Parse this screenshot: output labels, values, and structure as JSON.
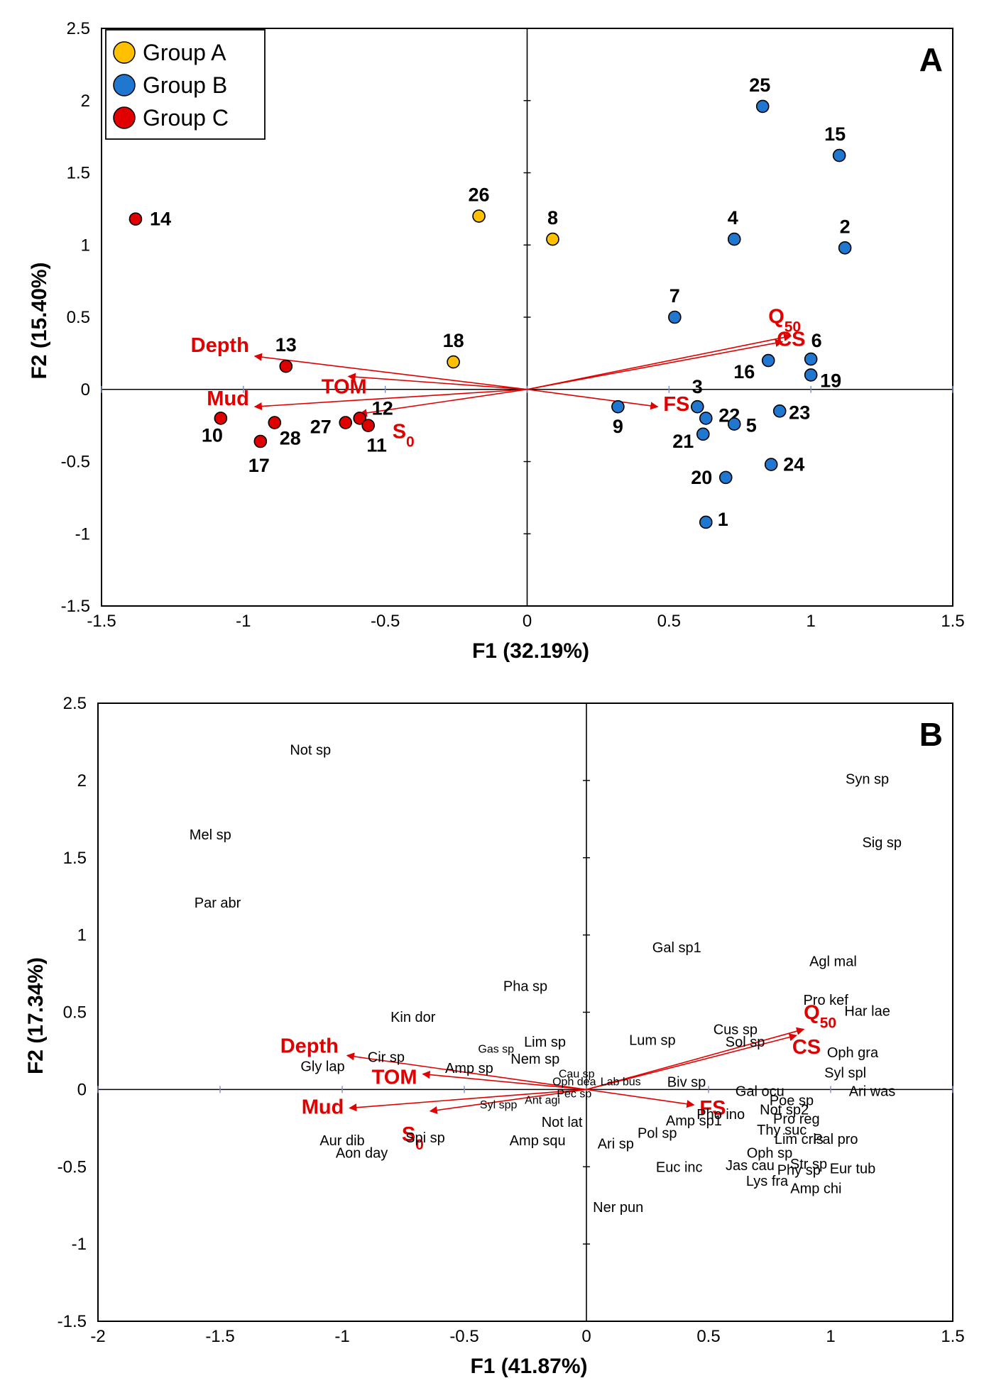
{
  "chart_data": [
    {
      "type": "scatter",
      "panel_label": "A",
      "title": "",
      "xlabel": "F1 (32.19%)",
      "ylabel": "F2 (15.40%)",
      "xlim": [
        -1.5,
        1.5
      ],
      "ylim": [
        -1.5,
        2.5
      ],
      "xticks": [
        "-1.5",
        "-1",
        "-0.5",
        "0",
        "0.5",
        "1",
        "1.5"
      ],
      "yticks": [
        "-1.5",
        "-1",
        "-0.5",
        "0",
        "0.5",
        "1",
        "1.5",
        "2",
        "2.5"
      ],
      "legend": {
        "position": "top-left",
        "entries": [
          {
            "name": "Group A",
            "color": "#FFC000"
          },
          {
            "name": "Group B",
            "color": "#1F77D0"
          },
          {
            "name": "Group C",
            "color": "#E00000"
          }
        ]
      },
      "points": [
        {
          "label": "14",
          "x": -1.38,
          "y": 1.18,
          "group": "Group C"
        },
        {
          "label": "26",
          "x": -0.17,
          "y": 1.2,
          "group": "Group A"
        },
        {
          "label": "8",
          "x": 0.09,
          "y": 1.04,
          "group": "Group A"
        },
        {
          "label": "18",
          "x": -0.26,
          "y": 0.19,
          "group": "Group A"
        },
        {
          "label": "13",
          "x": -0.85,
          "y": 0.16,
          "group": "Group C"
        },
        {
          "label": "10",
          "x": -1.08,
          "y": -0.2,
          "group": "Group C"
        },
        {
          "label": "28",
          "x": -0.89,
          "y": -0.23,
          "group": "Group C"
        },
        {
          "label": "17",
          "x": -0.94,
          "y": -0.36,
          "group": "Group C"
        },
        {
          "label": "27",
          "x": -0.64,
          "y": -0.23,
          "group": "Group C"
        },
        {
          "label": "12",
          "x": -0.59,
          "y": -0.2,
          "group": "Group C"
        },
        {
          "label": "11",
          "x": -0.56,
          "y": -0.25,
          "group": "Group C"
        },
        {
          "label": "25",
          "x": 0.83,
          "y": 1.96,
          "group": "Group B"
        },
        {
          "label": "15",
          "x": 1.1,
          "y": 1.62,
          "group": "Group B"
        },
        {
          "label": "4",
          "x": 0.73,
          "y": 1.04,
          "group": "Group B"
        },
        {
          "label": "2",
          "x": 1.12,
          "y": 0.98,
          "group": "Group B"
        },
        {
          "label": "7",
          "x": 0.52,
          "y": 0.5,
          "group": "Group B"
        },
        {
          "label": "6",
          "x": 1.0,
          "y": 0.21,
          "group": "Group B"
        },
        {
          "label": "16",
          "x": 0.85,
          "y": 0.2,
          "group": "Group B"
        },
        {
          "label": "19",
          "x": 1.0,
          "y": 0.1,
          "group": "Group B"
        },
        {
          "label": "9",
          "x": 0.32,
          "y": -0.12,
          "group": "Group B"
        },
        {
          "label": "3",
          "x": 0.6,
          "y": -0.12,
          "group": "Group B"
        },
        {
          "label": "22",
          "x": 0.63,
          "y": -0.2,
          "group": "Group B"
        },
        {
          "label": "21",
          "x": 0.62,
          "y": -0.31,
          "group": "Group B"
        },
        {
          "label": "5",
          "x": 0.73,
          "y": -0.24,
          "group": "Group B"
        },
        {
          "label": "23",
          "x": 0.89,
          "y": -0.15,
          "group": "Group B"
        },
        {
          "label": "24",
          "x": 0.86,
          "y": -0.52,
          "group": "Group B"
        },
        {
          "label": "20",
          "x": 0.7,
          "y": -0.61,
          "group": "Group B"
        },
        {
          "label": "1",
          "x": 0.63,
          "y": -0.92,
          "group": "Group B"
        }
      ],
      "vectors": [
        {
          "label": "Depth",
          "x": -0.96,
          "y": 0.23
        },
        {
          "label": "TOM",
          "x": -0.63,
          "y": 0.09
        },
        {
          "label": "Mud",
          "x": -0.96,
          "y": -0.12
        },
        {
          "label": "S",
          "subscript": "0",
          "x": -0.59,
          "y": -0.17
        },
        {
          "label": "FS",
          "x": 0.46,
          "y": -0.12
        },
        {
          "label": "Q",
          "subscript": "50",
          "x": 0.93,
          "y": 0.37
        },
        {
          "label": "CS",
          "x": 0.9,
          "y": 0.33
        }
      ]
    },
    {
      "type": "scatter",
      "panel_label": "B",
      "title": "",
      "xlabel": "F1 (41.87%)",
      "ylabel": "F2 (17.34%)",
      "xlim": [
        -2,
        1.5
      ],
      "ylim": [
        -1.5,
        2.5
      ],
      "xticks": [
        "-2",
        "-1.5",
        "-1",
        "-0.5",
        "0",
        "0.5",
        "1",
        "1.5"
      ],
      "yticks": [
        "-1.5",
        "-1",
        "-0.5",
        "0",
        "0.5",
        "1",
        "1.5",
        "2",
        "2.5"
      ],
      "species": [
        {
          "label": "Not sp",
          "x": -1.13,
          "y": 2.2
        },
        {
          "label": "Mel sp",
          "x": -1.54,
          "y": 1.65
        },
        {
          "label": "Par abr",
          "x": -1.51,
          "y": 1.21
        },
        {
          "label": "Syn sp",
          "x": 1.15,
          "y": 2.01
        },
        {
          "label": "Sig sp",
          "x": 1.21,
          "y": 1.6
        },
        {
          "label": "Gal sp1",
          "x": 0.37,
          "y": 0.92
        },
        {
          "label": "Agl mal",
          "x": 1.01,
          "y": 0.83
        },
        {
          "label": "Pha sp",
          "x": -0.25,
          "y": 0.67
        },
        {
          "label": "Pro kef",
          "x": 0.98,
          "y": 0.58
        },
        {
          "label": "Har lae",
          "x": 1.15,
          "y": 0.51
        },
        {
          "label": "Kin dor",
          "x": -0.71,
          "y": 0.47
        },
        {
          "label": "Cus sp",
          "x": 0.61,
          "y": 0.39
        },
        {
          "label": "Lum sp",
          "x": 0.27,
          "y": 0.32
        },
        {
          "label": "Sol sp",
          "x": 0.65,
          "y": 0.31
        },
        {
          "label": "Lim sp",
          "x": -0.17,
          "y": 0.31
        },
        {
          "label": "Gas sp",
          "x": -0.37,
          "y": 0.27
        },
        {
          "label": "Oph gra",
          "x": 1.09,
          "y": 0.24
        },
        {
          "label": "Nem sp",
          "x": -0.21,
          "y": 0.2
        },
        {
          "label": "Cir sp",
          "x": -0.82,
          "y": 0.21
        },
        {
          "label": "Gly lap",
          "x": -1.08,
          "y": 0.15
        },
        {
          "label": "Amp sp",
          "x": -0.48,
          "y": 0.14
        },
        {
          "label": "Cau sp",
          "x": -0.04,
          "y": 0.11
        },
        {
          "label": "Syl spl",
          "x": 1.06,
          "y": 0.11
        },
        {
          "label": "Oph dea",
          "x": -0.05,
          "y": 0.06
        },
        {
          "label": "Lab bus",
          "x": 0.14,
          "y": 0.06
        },
        {
          "label": "Biv sp",
          "x": 0.41,
          "y": 0.05
        },
        {
          "label": "Pec sp",
          "x": -0.05,
          "y": -0.02
        },
        {
          "label": "Gal ocu",
          "x": 0.71,
          "y": -0.01
        },
        {
          "label": "Ari was",
          "x": 1.17,
          "y": -0.01
        },
        {
          "label": "Ant agi",
          "x": -0.18,
          "y": -0.06
        },
        {
          "label": "Syl spp",
          "x": -0.36,
          "y": -0.09
        },
        {
          "label": "Poe sp",
          "x": 0.84,
          "y": -0.07
        },
        {
          "label": "Not sp2",
          "x": 0.81,
          "y": -0.13
        },
        {
          "label": "Pho ino",
          "x": 0.55,
          "y": -0.16
        },
        {
          "label": "Pro reg",
          "x": 0.86,
          "y": -0.19
        },
        {
          "label": "Amp sp1",
          "x": 0.44,
          "y": -0.2
        },
        {
          "label": "Not lat",
          "x": -0.1,
          "y": -0.21
        },
        {
          "label": "Thy suc",
          "x": 0.8,
          "y": -0.26
        },
        {
          "label": "Pol sp",
          "x": 0.29,
          "y": -0.28
        },
        {
          "label": "Lim cris",
          "x": 0.87,
          "y": -0.32
        },
        {
          "label": "Pal pro",
          "x": 1.02,
          "y": -0.32
        },
        {
          "label": "Ari sp",
          "x": 0.12,
          "y": -0.35
        },
        {
          "label": "Aur dib",
          "x": -1.0,
          "y": -0.33
        },
        {
          "label": "Spi sp",
          "x": -0.66,
          "y": -0.31
        },
        {
          "label": "Amp squ",
          "x": -0.2,
          "y": -0.33
        },
        {
          "label": "Aon day",
          "x": -0.92,
          "y": -0.41
        },
        {
          "label": "Oph sp",
          "x": 0.75,
          "y": -0.41
        },
        {
          "label": "Str sp",
          "x": 0.91,
          "y": -0.48
        },
        {
          "label": "Euc inc",
          "x": 0.38,
          "y": -0.5
        },
        {
          "label": "Jas cau",
          "x": 0.67,
          "y": -0.49
        },
        {
          "label": "Phy sp",
          "x": 0.87,
          "y": -0.52
        },
        {
          "label": "Eur tub",
          "x": 1.09,
          "y": -0.51
        },
        {
          "label": "Lys fra",
          "x": 0.74,
          "y": -0.59
        },
        {
          "label": "Amp chi",
          "x": 0.94,
          "y": -0.64
        },
        {
          "label": "Ner pun",
          "x": 0.13,
          "y": -0.76
        }
      ],
      "vectors": [
        {
          "label": "Depth",
          "x": -0.98,
          "y": 0.22
        },
        {
          "label": "TOM",
          "x": -0.67,
          "y": 0.1
        },
        {
          "label": "Mud",
          "x": -0.97,
          "y": -0.12
        },
        {
          "label": "S",
          "subscript": "0",
          "x": -0.64,
          "y": -0.14
        },
        {
          "label": "FS",
          "x": 0.44,
          "y": -0.1
        },
        {
          "label": "Q",
          "subscript": "50",
          "x": 0.89,
          "y": 0.39
        },
        {
          "label": "CS",
          "x": 0.86,
          "y": 0.35
        }
      ]
    }
  ]
}
